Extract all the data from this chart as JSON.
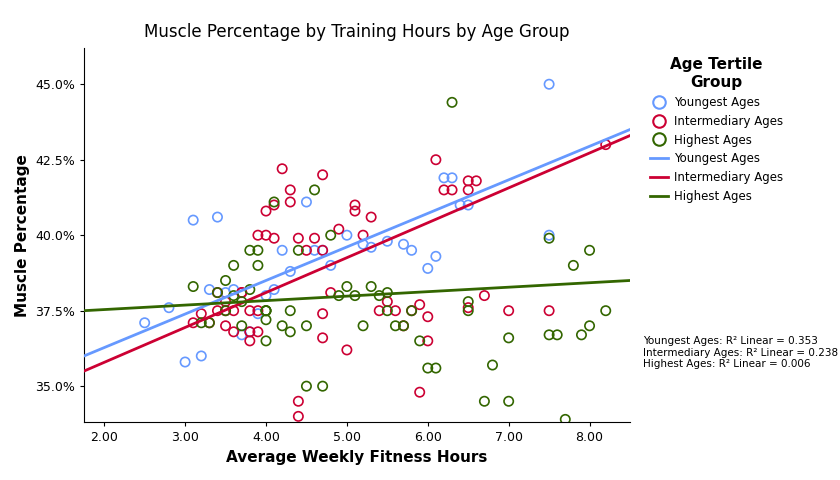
{
  "title": "Muscle Percentage by Training Hours by Age Group",
  "xlabel": "Average Weekly Fitness Hours",
  "ylabel": "Muscle Percentage",
  "legend_title": "Age Tertile\nGroup",
  "xlim": [
    1.75,
    8.5
  ],
  "ylim": [
    0.338,
    0.462
  ],
  "yticks": [
    0.35,
    0.375,
    0.4,
    0.425,
    0.45
  ],
  "xticks": [
    2.0,
    3.0,
    4.0,
    5.0,
    6.0,
    7.0,
    8.0
  ],
  "colors": {
    "youngest": "#6699FF",
    "intermediary": "#CC0033",
    "highest": "#336600"
  },
  "r2_text": "Youngest Ages: R² Linear = 0.353\nIntermediary Ages: R² Linear = 0.238\nHighest Ages: R² Linear = 0.006",
  "youngest_scatter": [
    [
      2.5,
      0.371
    ],
    [
      2.8,
      0.376
    ],
    [
      3.0,
      0.358
    ],
    [
      3.1,
      0.405
    ],
    [
      3.2,
      0.36
    ],
    [
      3.3,
      0.382
    ],
    [
      3.4,
      0.406
    ],
    [
      3.5,
      0.381
    ],
    [
      3.6,
      0.382
    ],
    [
      3.7,
      0.367
    ],
    [
      3.8,
      0.368
    ],
    [
      3.9,
      0.374
    ],
    [
      4.0,
      0.38
    ],
    [
      4.1,
      0.382
    ],
    [
      4.2,
      0.395
    ],
    [
      4.3,
      0.388
    ],
    [
      4.5,
      0.411
    ],
    [
      4.6,
      0.395
    ],
    [
      4.7,
      0.395
    ],
    [
      4.8,
      0.39
    ],
    [
      5.0,
      0.4
    ],
    [
      5.2,
      0.397
    ],
    [
      5.3,
      0.396
    ],
    [
      5.5,
      0.398
    ],
    [
      5.7,
      0.397
    ],
    [
      5.8,
      0.395
    ],
    [
      6.0,
      0.389
    ],
    [
      6.1,
      0.393
    ],
    [
      6.2,
      0.419
    ],
    [
      6.3,
      0.419
    ],
    [
      6.4,
      0.41
    ],
    [
      6.5,
      0.41
    ],
    [
      7.5,
      0.45
    ],
    [
      7.5,
      0.4
    ]
  ],
  "intermediary_scatter": [
    [
      3.1,
      0.371
    ],
    [
      3.2,
      0.374
    ],
    [
      3.3,
      0.371
    ],
    [
      3.4,
      0.381
    ],
    [
      3.4,
      0.375
    ],
    [
      3.5,
      0.375
    ],
    [
      3.5,
      0.378
    ],
    [
      3.5,
      0.37
    ],
    [
      3.6,
      0.368
    ],
    [
      3.6,
      0.375
    ],
    [
      3.7,
      0.381
    ],
    [
      3.7,
      0.381
    ],
    [
      3.8,
      0.375
    ],
    [
      3.8,
      0.368
    ],
    [
      3.8,
      0.365
    ],
    [
      3.9,
      0.4
    ],
    [
      3.9,
      0.368
    ],
    [
      3.9,
      0.375
    ],
    [
      4.0,
      0.4
    ],
    [
      4.0,
      0.408
    ],
    [
      4.1,
      0.41
    ],
    [
      4.1,
      0.399
    ],
    [
      4.2,
      0.422
    ],
    [
      4.3,
      0.411
    ],
    [
      4.3,
      0.415
    ],
    [
      4.4,
      0.399
    ],
    [
      4.4,
      0.34
    ],
    [
      4.4,
      0.345
    ],
    [
      4.5,
      0.395
    ],
    [
      4.6,
      0.399
    ],
    [
      4.7,
      0.374
    ],
    [
      4.7,
      0.366
    ],
    [
      4.7,
      0.395
    ],
    [
      4.7,
      0.42
    ],
    [
      4.8,
      0.381
    ],
    [
      4.9,
      0.402
    ],
    [
      5.0,
      0.362
    ],
    [
      5.1,
      0.41
    ],
    [
      5.1,
      0.408
    ],
    [
      5.2,
      0.4
    ],
    [
      5.3,
      0.406
    ],
    [
      5.4,
      0.375
    ],
    [
      5.5,
      0.378
    ],
    [
      5.6,
      0.375
    ],
    [
      5.7,
      0.37
    ],
    [
      5.8,
      0.375
    ],
    [
      5.9,
      0.348
    ],
    [
      5.9,
      0.377
    ],
    [
      6.0,
      0.365
    ],
    [
      6.0,
      0.373
    ],
    [
      6.1,
      0.425
    ],
    [
      6.2,
      0.415
    ],
    [
      6.3,
      0.415
    ],
    [
      6.5,
      0.418
    ],
    [
      6.5,
      0.415
    ],
    [
      6.5,
      0.376
    ],
    [
      6.6,
      0.418
    ],
    [
      6.7,
      0.38
    ],
    [
      7.0,
      0.375
    ],
    [
      7.5,
      0.375
    ],
    [
      8.2,
      0.43
    ]
  ],
  "highest_scatter": [
    [
      3.1,
      0.383
    ],
    [
      3.2,
      0.371
    ],
    [
      3.3,
      0.371
    ],
    [
      3.4,
      0.381
    ],
    [
      3.5,
      0.375
    ],
    [
      3.5,
      0.385
    ],
    [
      3.6,
      0.38
    ],
    [
      3.6,
      0.39
    ],
    [
      3.7,
      0.37
    ],
    [
      3.7,
      0.378
    ],
    [
      3.8,
      0.395
    ],
    [
      3.8,
      0.382
    ],
    [
      3.9,
      0.395
    ],
    [
      3.9,
      0.39
    ],
    [
      4.0,
      0.375
    ],
    [
      4.0,
      0.375
    ],
    [
      4.0,
      0.375
    ],
    [
      4.0,
      0.372
    ],
    [
      4.0,
      0.365
    ],
    [
      4.1,
      0.411
    ],
    [
      4.2,
      0.37
    ],
    [
      4.3,
      0.368
    ],
    [
      4.3,
      0.375
    ],
    [
      4.4,
      0.395
    ],
    [
      4.5,
      0.35
    ],
    [
      4.5,
      0.37
    ],
    [
      4.6,
      0.415
    ],
    [
      4.7,
      0.35
    ],
    [
      4.8,
      0.4
    ],
    [
      4.9,
      0.38
    ],
    [
      5.0,
      0.383
    ],
    [
      5.1,
      0.38
    ],
    [
      5.2,
      0.37
    ],
    [
      5.3,
      0.383
    ],
    [
      5.4,
      0.38
    ],
    [
      5.5,
      0.375
    ],
    [
      5.5,
      0.381
    ],
    [
      5.6,
      0.37
    ],
    [
      5.7,
      0.37
    ],
    [
      5.8,
      0.375
    ],
    [
      5.9,
      0.365
    ],
    [
      6.0,
      0.356
    ],
    [
      6.1,
      0.356
    ],
    [
      6.3,
      0.444
    ],
    [
      6.5,
      0.375
    ],
    [
      6.5,
      0.378
    ],
    [
      6.7,
      0.345
    ],
    [
      6.8,
      0.357
    ],
    [
      7.0,
      0.345
    ],
    [
      7.0,
      0.366
    ],
    [
      7.5,
      0.399
    ],
    [
      7.5,
      0.367
    ],
    [
      7.6,
      0.367
    ],
    [
      7.7,
      0.339
    ],
    [
      7.8,
      0.39
    ],
    [
      7.9,
      0.367
    ],
    [
      8.0,
      0.395
    ],
    [
      8.0,
      0.37
    ],
    [
      8.2,
      0.375
    ]
  ],
  "youngest_line": [
    [
      1.75,
      0.36
    ],
    [
      8.5,
      0.435
    ]
  ],
  "intermediary_line": [
    [
      1.75,
      0.355
    ],
    [
      8.5,
      0.433
    ]
  ],
  "highest_line": [
    [
      1.75,
      0.375
    ],
    [
      8.5,
      0.385
    ]
  ]
}
